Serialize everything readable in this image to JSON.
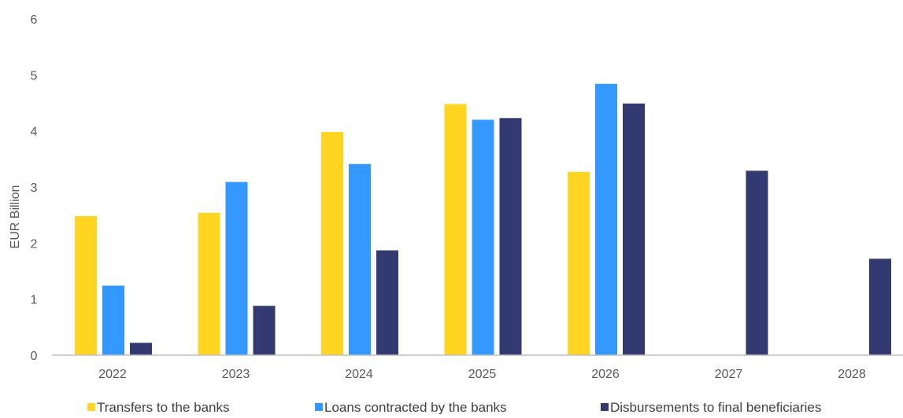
{
  "chart_data": {
    "type": "bar",
    "title": "",
    "xlabel": "",
    "ylabel": "EUR Billion",
    "ylim": [
      0,
      6
    ],
    "yticks": [
      0,
      1,
      2,
      3,
      4,
      5,
      6
    ],
    "grid": false,
    "legend_position": "bottom",
    "categories": [
      "2022",
      "2023",
      "2024",
      "2025",
      "2026",
      "2027",
      "2028"
    ],
    "series": [
      {
        "name": "Transfers to the banks",
        "color": "#FFD522",
        "values": [
          2.48,
          2.54,
          3.98,
          4.48,
          3.27,
          null,
          null
        ]
      },
      {
        "name": "Loans contracted by the banks",
        "color": "#3399FF",
        "values": [
          1.24,
          3.09,
          3.41,
          4.2,
          4.84,
          null,
          null
        ]
      },
      {
        "name": "Disbursements to final beneficiaries",
        "color": "#333A72",
        "values": [
          0.22,
          0.88,
          1.87,
          4.23,
          4.49,
          3.29,
          1.72
        ]
      }
    ]
  }
}
